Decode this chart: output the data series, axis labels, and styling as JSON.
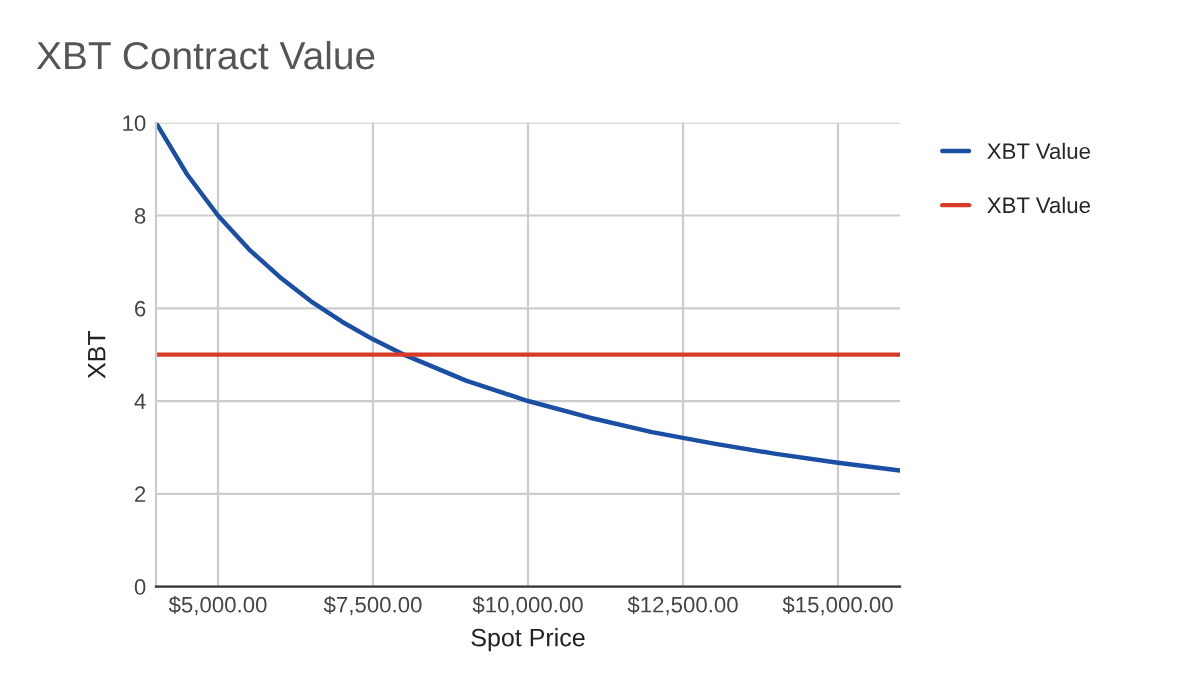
{
  "chart_data": {
    "type": "line",
    "title": "XBT Contract Value",
    "xlabel": "Spot Price",
    "ylabel": "XBT",
    "xlim": [
      4000,
      16000
    ],
    "xticks": [
      {
        "value": 5000,
        "label": "$5,000.00"
      },
      {
        "value": 7500,
        "label": "$7,500.00"
      },
      {
        "value": 10000,
        "label": "$10,000.00"
      },
      {
        "value": 12500,
        "label": "$12,500.00"
      },
      {
        "value": 15000,
        "label": "$15,000.00"
      }
    ],
    "ylim": [
      0,
      10
    ],
    "yticks": [
      0,
      2,
      4,
      6,
      8,
      10
    ],
    "grid": true,
    "legend": "right",
    "marker": "none",
    "line_style": "solid",
    "series": [
      {
        "name": "XBT Value",
        "color": "#1a4fa3",
        "x": [
          4000,
          4500,
          5000,
          5500,
          6000,
          6500,
          7000,
          7500,
          8000,
          9000,
          10000,
          11000,
          12000,
          13000,
          14000,
          15000,
          16000
        ],
        "values": [
          10,
          8.89,
          8,
          7.27,
          6.67,
          6.15,
          5.71,
          5.33,
          5,
          4.44,
          4,
          3.64,
          3.33,
          3.08,
          2.86,
          2.67,
          2.5
        ]
      },
      {
        "name": "XBT Value",
        "color": "#d73a26",
        "x": [
          4000,
          16000
        ],
        "values": [
          5,
          5
        ]
      }
    ]
  }
}
